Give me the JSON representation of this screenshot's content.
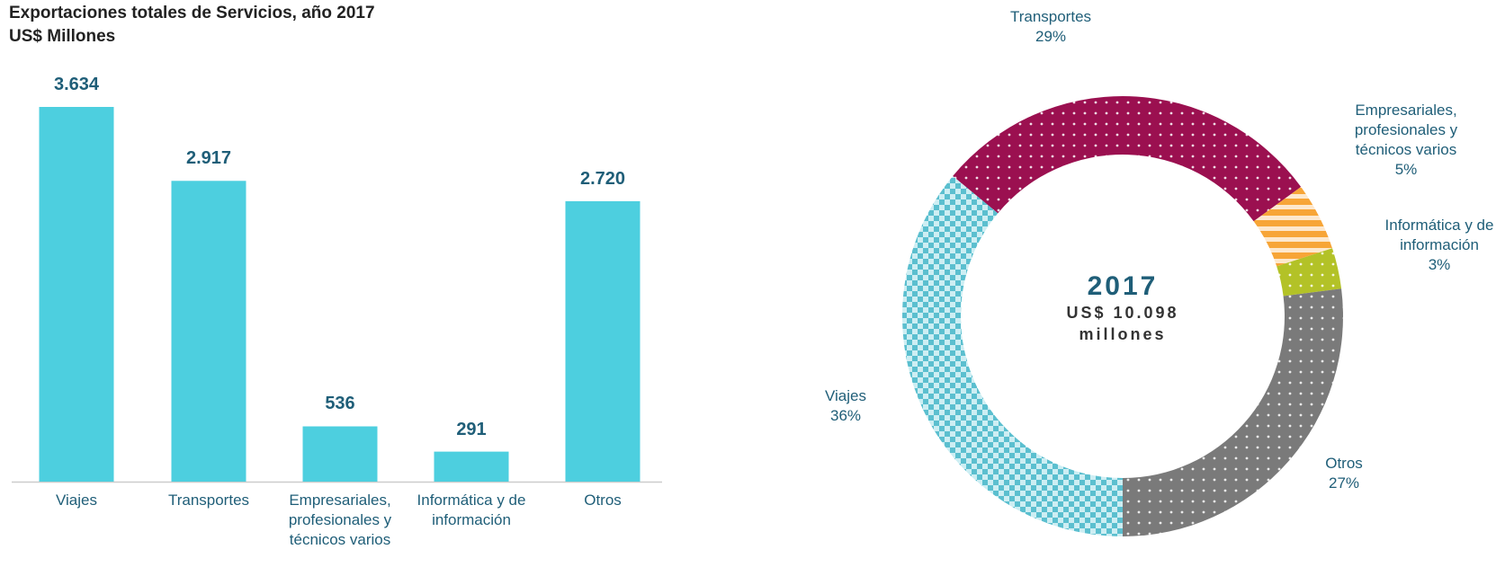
{
  "chart_data": [
    {
      "type": "bar",
      "title": "Exportaciones totales de Servicios, año 2017",
      "subtitle": "US$ Millones",
      "categories": [
        "Viajes",
        "Transportes",
        "Empresariales, profesionales y técnicos varios",
        "Informática y de información",
        "Otros"
      ],
      "values": [
        3634,
        2917,
        536,
        291,
        2720
      ],
      "value_labels": [
        "3.634",
        "2.917",
        "536",
        "291",
        "2.720"
      ],
      "color": "#4dcfdf"
    },
    {
      "type": "donut",
      "annotations": [
        "2017",
        "US$ 10.098",
        "millones"
      ],
      "categories": [
        "Viajes",
        "Transportes",
        "Empresariales, profesionales y técnicos varios",
        "Informática y de información",
        "Otros"
      ],
      "values": [
        36,
        29,
        5,
        3,
        27
      ],
      "value_labels": [
        "36%",
        "29%",
        "5%",
        "3%",
        "27%"
      ],
      "colors": [
        "#5bbfcf",
        "#9b1050",
        "#f7a537",
        "#b3c227",
        "#7a7a7a"
      ]
    }
  ]
}
